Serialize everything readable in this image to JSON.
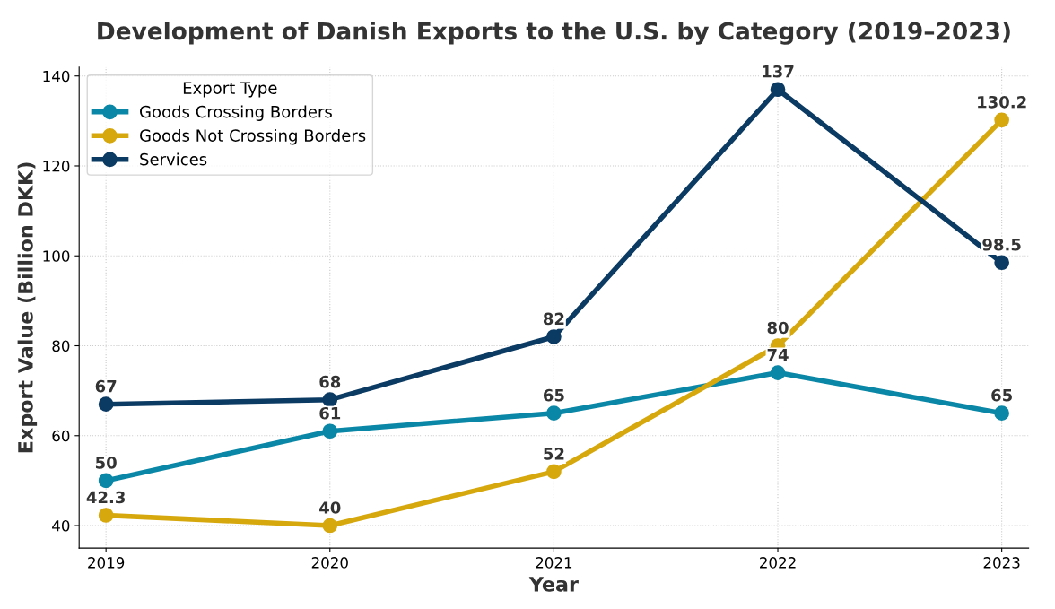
{
  "chart_data": {
    "type": "line",
    "title": "Development of Danish Exports to the U.S. by Category (2019–2023)",
    "xlabel": "Year",
    "ylabel": "Export Value (Billion DKK)",
    "legend_title": "Export Type",
    "categories": [
      "2019",
      "2020",
      "2021",
      "2022",
      "2023"
    ],
    "series": [
      {
        "name": "Goods Crossing Borders",
        "color": "#0a87a6",
        "values": [
          50,
          61,
          65,
          74,
          65
        ]
      },
      {
        "name": "Goods Not Crossing Borders",
        "color": "#d6a80e",
        "values": [
          42.3,
          40,
          52,
          80,
          130.2
        ]
      },
      {
        "name": "Services",
        "color": "#0b3a63",
        "values": [
          67,
          68,
          82,
          137,
          98.5
        ]
      }
    ],
    "ylim": [
      35,
      142
    ],
    "yticks": [
      40,
      60,
      80,
      100,
      120,
      140
    ],
    "grid": true,
    "legend": "top left",
    "marker": "circle",
    "line_style": "solid",
    "data_labels": true
  }
}
